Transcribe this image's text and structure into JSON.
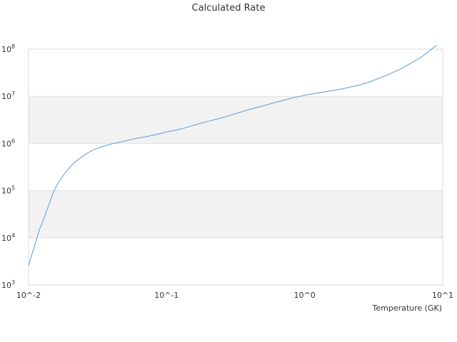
{
  "chart_data": {
    "type": "line",
    "title": "Calculated Rate",
    "xlabel": "Temperature (GK)",
    "ylabel": "",
    "xscale": "log",
    "yscale": "log",
    "xlim": [
      0.01,
      10
    ],
    "ylim": [
      1000,
      100000000
    ],
    "x_ticks": [
      "10^-2",
      "10^-1",
      "10^0",
      "10^1"
    ],
    "y_ticks": [
      "10^3",
      "10^4",
      "10^5",
      "10^6",
      "10^7",
      "10^8"
    ],
    "y_sup": [
      "3",
      "4",
      "5",
      "6",
      "7",
      "8"
    ],
    "grid": "horizontal bands",
    "legend": "none",
    "line_color": "#5b9bd5",
    "band_color": "#f2f2f2",
    "series": [
      {
        "x": [
          0.01,
          0.011,
          0.012,
          0.013,
          0.014,
          0.015,
          0.016,
          0.018,
          0.02,
          0.022,
          0.025,
          0.028,
          0.03,
          0.035,
          0.04,
          0.05,
          0.06,
          0.07,
          0.08,
          0.09,
          0.1,
          0.12,
          0.14,
          0.16,
          0.18,
          0.2,
          0.25,
          0.3,
          0.35,
          0.4,
          0.5,
          0.6,
          0.7,
          0.8,
          0.9,
          1.0,
          1.25,
          1.5,
          1.75,
          2.0,
          2.5,
          3.0,
          3.5,
          4.0,
          5.0,
          6.0,
          7.0,
          8.0,
          9.0
        ],
        "y": [
          2600,
          6500,
          15000,
          27000,
          50000,
          85000,
          130000,
          220000,
          320000,
          420000,
          550000,
          680000,
          750000,
          880000,
          980000,
          1130000,
          1280000,
          1380000,
          1500000,
          1620000,
          1760000,
          1950000,
          2200000,
          2480000,
          2740000,
          2950000,
          3500000,
          4100000,
          4700000,
          5300000,
          6300000,
          7300000,
          8200000,
          9100000,
          9800000,
          10600000,
          11800000,
          12900000,
          13900000,
          15000000,
          17400000,
          20500000,
          24500000,
          28500000,
          38500000,
          52000000,
          68000000,
          92000000,
          120000000
        ]
      }
    ]
  }
}
